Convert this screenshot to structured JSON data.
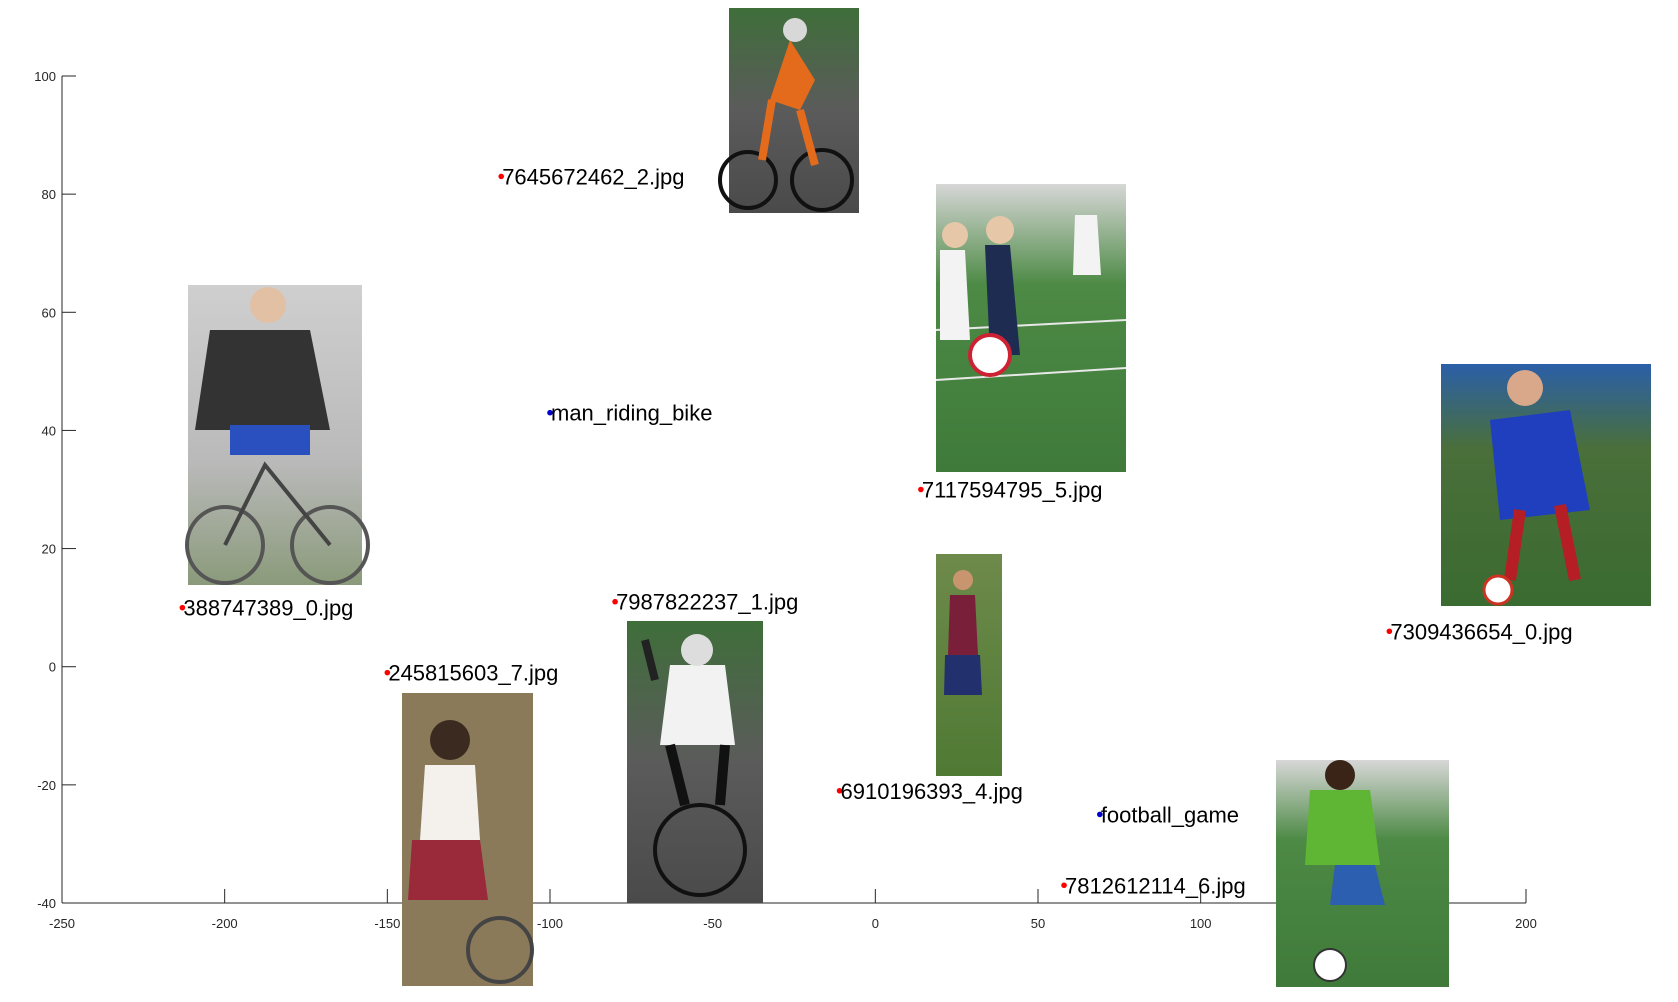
{
  "colors": {
    "axis": "#262626",
    "image_point": "#ff0000",
    "query_point": "#0000cc"
  },
  "chart_data": {
    "type": "scatter",
    "xlim": [
      -250,
      200
    ],
    "ylim": [
      -40,
      100
    ],
    "x_ticks": [
      -250,
      -200,
      -150,
      -100,
      -50,
      0,
      50,
      100,
      150,
      200
    ],
    "y_ticks": [
      -40,
      -20,
      0,
      20,
      40,
      60,
      80,
      100
    ],
    "grid": false,
    "x_tick_labels": [
      "-250",
      "-200",
      "-150",
      "-100",
      "-50",
      "0",
      "50",
      "100",
      "150",
      "200"
    ],
    "y_tick_labels": [
      "-40",
      "-20",
      "0",
      "20",
      "40",
      "60",
      "80",
      "100"
    ],
    "points": [
      {
        "label": "7645672462_2.jpg",
        "x": -115,
        "y": 83,
        "kind": "image",
        "thumb": "cyclist-racing"
      },
      {
        "label": "man_riding_bike",
        "x": -100,
        "y": 43,
        "kind": "query"
      },
      {
        "label": "7117594795_5.jpg",
        "x": 14,
        "y": 30,
        "kind": "image",
        "thumb": "women-soccer"
      },
      {
        "label": "388747389_0.jpg",
        "x": -213,
        "y": 10,
        "kind": "image",
        "thumb": "man-bicycle"
      },
      {
        "label": "7987822237_1.jpg",
        "x": -80,
        "y": 11,
        "kind": "image",
        "thumb": "cyclist-waving"
      },
      {
        "label": "7309436654_0.jpg",
        "x": 158,
        "y": 6,
        "kind": "image",
        "thumb": "man-kicking-ball"
      },
      {
        "label": "245815603_7.jpg",
        "x": -150,
        "y": -1,
        "kind": "image",
        "thumb": "boy-bicycle"
      },
      {
        "label": "6910196393_4.jpg",
        "x": -11,
        "y": -21,
        "kind": "image",
        "thumb": "soccer-players"
      },
      {
        "label": "football_game",
        "x": 69,
        "y": -25,
        "kind": "query"
      },
      {
        "label": "7812612114_6.jpg",
        "x": 58,
        "y": -37,
        "kind": "image",
        "thumb": "soccer-player-green"
      }
    ]
  }
}
